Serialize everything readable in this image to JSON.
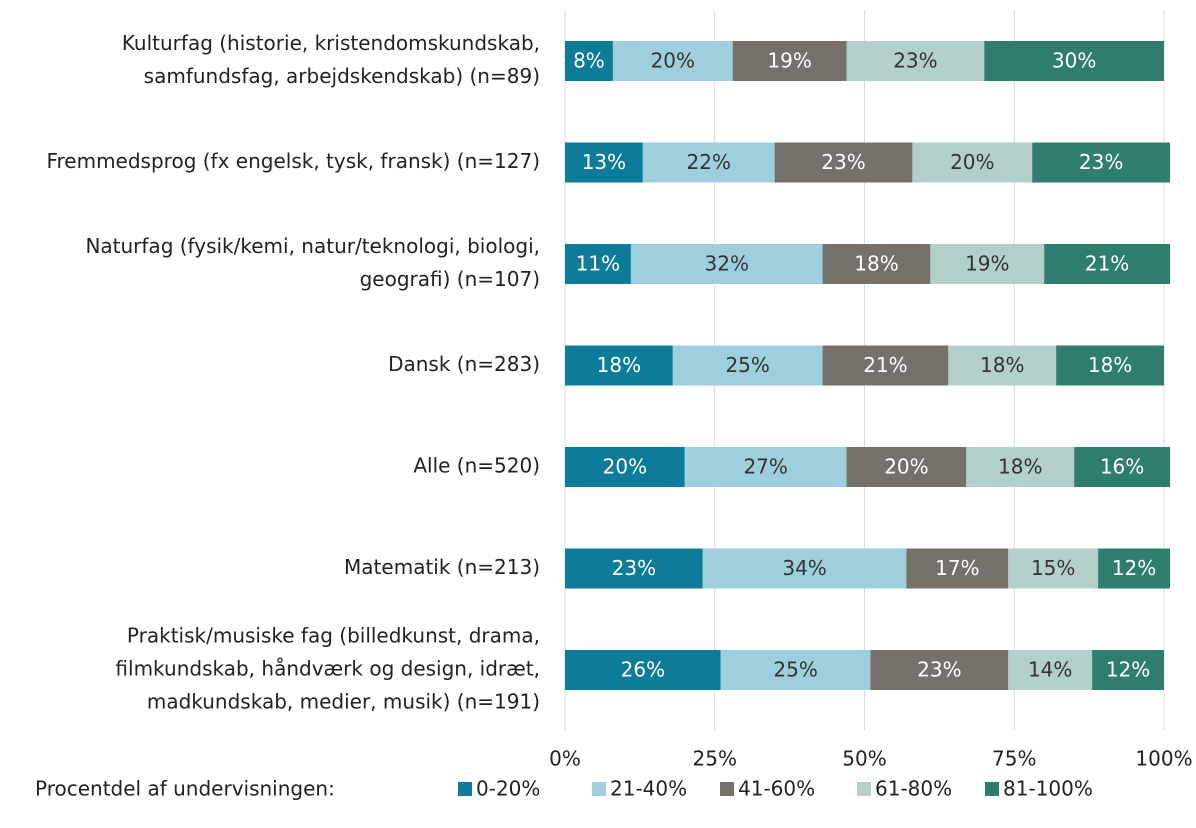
{
  "chart_data": {
    "type": "stacked_barh",
    "categories": [
      [
        "Kulturfag (historie, kristendomskundskab,",
        "samfundsfag, arbejdskendskab) (n=89)"
      ],
      [
        "Fremmedsprog (fx engelsk, tysk, fransk) (n=127)"
      ],
      [
        "Naturfag (fysik/kemi, natur/teknologi, biologi,",
        "geografi) (n=107)"
      ],
      [
        "Dansk (n=283)"
      ],
      [
        "Alle (n=520)"
      ],
      [
        "Matematik (n=213)"
      ],
      [
        "Praktisk/musiske fag (billedkunst, drama,",
        "filmkundskab, håndværk og design, idræt,",
        "madkundskab, medier, musik) (n=191)"
      ]
    ],
    "series": [
      {
        "name": "0-20%",
        "color": "#0e7c99",
        "values": [
          8,
          13,
          11,
          18,
          20,
          23,
          26
        ],
        "value_labels": [
          "8%",
          "13%",
          "11%",
          "18%",
          "20%",
          "23%",
          "26%"
        ]
      },
      {
        "name": "21-40%",
        "color": "#9ecfdc",
        "values": [
          20,
          22,
          32,
          25,
          27,
          34,
          25
        ],
        "value_labels": [
          "20%",
          "22%",
          "32%",
          "25%",
          "27%",
          "34%",
          "25%"
        ]
      },
      {
        "name": "41-60%",
        "color": "#76706b",
        "values": [
          19,
          23,
          18,
          21,
          20,
          17,
          23
        ],
        "value_labels": [
          "19%",
          "23%",
          "18%",
          "21%",
          "20%",
          "17%",
          "23%"
        ]
      },
      {
        "name": "61-80%",
        "color": "#b3cfc9",
        "values": [
          23,
          20,
          19,
          18,
          18,
          15,
          14
        ],
        "value_labels": [
          "23%",
          "20%",
          "19%",
          "18%",
          "18%",
          "15%",
          "14%"
        ]
      },
      {
        "name": "81-100%",
        "color": "#2e7d6f",
        "values": [
          30,
          23,
          21,
          18,
          16,
          12,
          12
        ],
        "value_labels": [
          "30%",
          "23%",
          "21%",
          "18%",
          "16%",
          "12%",
          "12%"
        ]
      }
    ],
    "xlim": [
      0,
      100
    ],
    "xticks": [
      {
        "value": 0,
        "label": "0%"
      },
      {
        "value": 25,
        "label": "25%"
      },
      {
        "value": 50,
        "label": "50%"
      },
      {
        "value": 75,
        "label": "75%"
      },
      {
        "value": 100,
        "label": "100%"
      }
    ],
    "grid": true,
    "legend_title": "Procentdel af undervisningen:",
    "legend": "bottom"
  }
}
